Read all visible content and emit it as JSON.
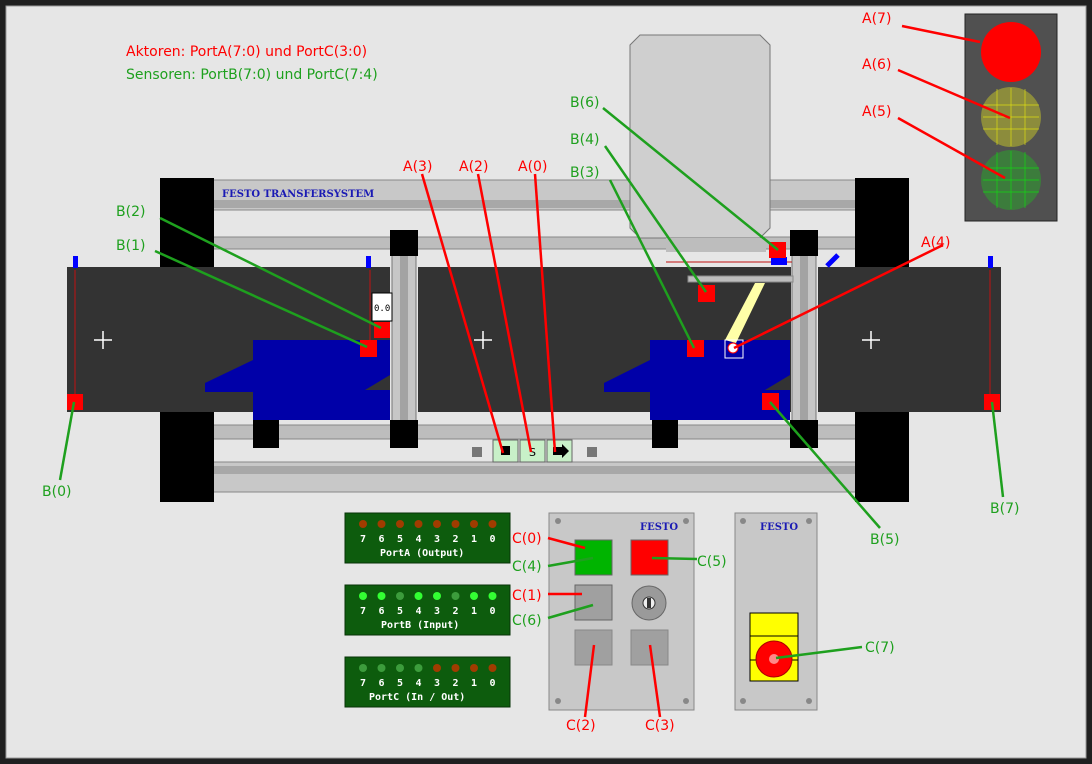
{
  "colors": {
    "actuator": "#ff0000",
    "sensor": "#1ea01e",
    "background": "#e6e6e6",
    "conveyor": "#333333",
    "workpiece": "#0000a8",
    "led_panel": "#0d5c0d",
    "led_on": "#33ff33",
    "led_off_red": "#a03c00"
  },
  "header": {
    "actuators": "Aktoren: PortA(7:0) und PortC(3:0)",
    "sensors": "Sensoren: PortB(7:0) und PortC(7:4)"
  },
  "transfer_label": "FESTO TRANSFERSYSTEM",
  "counter_value": "0.0",
  "labels": {
    "A7": "A(7)",
    "A6": "A(6)",
    "A5": "A(5)",
    "A4": "A(4)",
    "A3": "A(3)",
    "A2": "A(2)",
    "A0": "A(0)",
    "B0": "B(0)",
    "B1": "B(1)",
    "B2": "B(2)",
    "B3": "B(3)",
    "B4": "B(4)",
    "B5": "B(5)",
    "B6": "B(6)",
    "B7": "B(7)",
    "C0": "C(0)",
    "C1": "C(1)",
    "C2": "C(2)",
    "C3": "C(3)",
    "C4": "C(4)",
    "C5": "C(5)",
    "C6": "C(6)",
    "C7": "C(7)"
  },
  "controls": {
    "stop_icon": "stop-icon",
    "s_label": "S",
    "play_icon": "play-icon"
  },
  "ports": {
    "bits": [
      "7",
      "6",
      "5",
      "4",
      "3",
      "2",
      "1",
      "0"
    ],
    "portA": {
      "title": "PortA (Output)",
      "leds": [
        "off",
        "off",
        "off",
        "off",
        "off",
        "off",
        "off",
        "off"
      ]
    },
    "portB": {
      "title": "PortB (Input)",
      "leds": [
        "on",
        "on",
        "dim",
        "on",
        "on",
        "dim",
        "on",
        "on"
      ]
    },
    "portC": {
      "title": "PortC (In / Out)",
      "leds": [
        "dim",
        "dim",
        "dim",
        "dim",
        "off",
        "off",
        "off",
        "off"
      ]
    }
  },
  "panel_brand": "FESTO",
  "traffic_light": {
    "red": "on",
    "yellow": "off",
    "green": "off"
  }
}
